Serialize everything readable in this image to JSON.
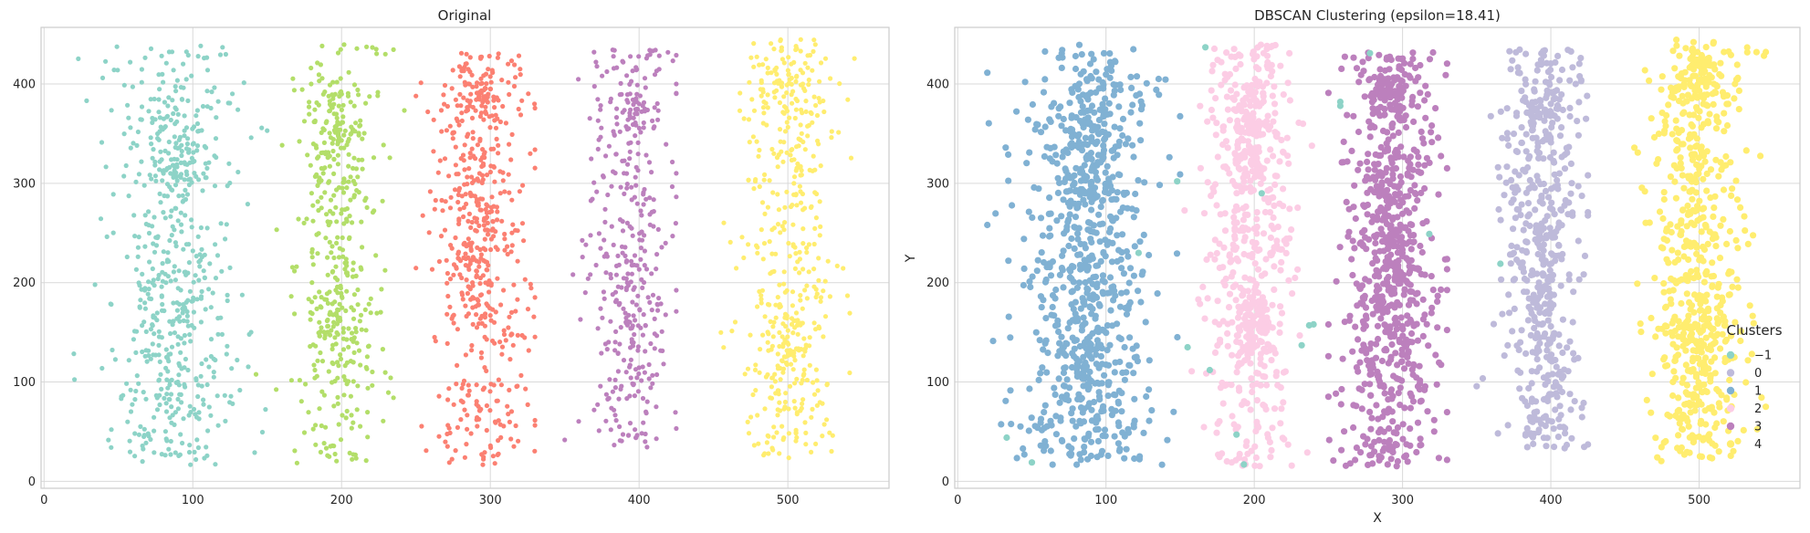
{
  "chart_data": [
    {
      "type": "scatter",
      "title": "Original",
      "xlabel": "",
      "ylabel": "",
      "xlim": [
        -2,
        568
      ],
      "ylim": [
        -7,
        457
      ],
      "xticks": [
        0,
        100,
        200,
        300,
        400,
        500
      ],
      "yticks": [
        0,
        100,
        200,
        300,
        400
      ],
      "grid": true,
      "legend": null,
      "point_radius": 2.6,
      "bands": [
        {
          "color": "#8dd3c7",
          "cx": 88,
          "sx": 24,
          "xmin": 20,
          "xmax": 150,
          "ymin": 15,
          "ymax": 440,
          "n": 430,
          "clusters": [
            {
              "y": 350,
              "sx": 9,
              "sy": 25,
              "n": 50
            },
            {
              "y": 305,
              "sx": 10,
              "sy": 15,
              "n": 35
            },
            {
              "y": 200,
              "sx": 12,
              "sy": 30,
              "n": 60
            },
            {
              "y": 110,
              "sx": 9,
              "sy": 25,
              "n": 45
            }
          ],
          "samples": [
            {
              "x": 88,
              "y": 360
            },
            {
              "x": 85,
              "y": 310
            },
            {
              "x": 82,
              "y": 200
            },
            {
              "x": 90,
              "y": 100
            }
          ]
        },
        {
          "color": "#b3de69",
          "cx": 197,
          "sx": 16,
          "xmin": 140,
          "xmax": 245,
          "ymin": 15,
          "ymax": 440,
          "n": 330,
          "clusters": [
            {
              "y": 360,
              "sx": 7,
              "sy": 20,
              "n": 55
            },
            {
              "y": 310,
              "sx": 7,
              "sy": 20,
              "n": 30
            },
            {
              "y": 160,
              "sx": 9,
              "sy": 20,
              "n": 60
            }
          ],
          "samples": [
            {
              "x": 195,
              "y": 370
            },
            {
              "x": 185,
              "y": 160
            }
          ]
        },
        {
          "color": "#fb8072",
          "cx": 293,
          "sx": 17,
          "xmin": 250,
          "xmax": 330,
          "ymin": 15,
          "ymax": 432,
          "n": 430,
          "clusters": [
            {
              "y": 390,
              "sx": 6,
              "sy": 12,
              "n": 45
            },
            {
              "y": 280,
              "sx": 7,
              "sy": 40,
              "n": 50
            },
            {
              "y": 200,
              "sx": 8,
              "sy": 30,
              "n": 50
            }
          ],
          "samples": [
            {
              "x": 300,
              "y": 395
            },
            {
              "x": 292,
              "y": 280
            }
          ]
        },
        {
          "color": "#bc80bd",
          "cx": 395,
          "sx": 14,
          "xmin": 350,
          "xmax": 425,
          "ymin": 30,
          "ymax": 435,
          "n": 340,
          "clusters": [
            {
              "y": 375,
              "sx": 6,
              "sy": 10,
              "n": 25
            },
            {
              "y": 200,
              "sx": 6,
              "sy": 40,
              "n": 40
            }
          ],
          "samples": [
            {
              "x": 400,
              "y": 380
            },
            {
              "x": 392,
              "y": 200
            }
          ]
        },
        {
          "color": "#ffed6f",
          "cx": 500,
          "sx": 16,
          "xmin": 455,
          "xmax": 545,
          "ymin": 20,
          "ymax": 445,
          "n": 420,
          "clusters": [
            {
              "y": 400,
              "sx": 8,
              "sy": 20,
              "n": 35
            },
            {
              "y": 140,
              "sx": 8,
              "sy": 20,
              "n": 45
            }
          ],
          "samples": [
            {
              "x": 510,
              "y": 400
            },
            {
              "x": 498,
              "y": 140
            }
          ]
        }
      ]
    },
    {
      "type": "scatter",
      "title": "DBSCAN Clustering (epsilon=18.41)",
      "xlabel": "X",
      "ylabel": "Y",
      "xlim": [
        -2,
        568
      ],
      "ylim": [
        -7,
        457
      ],
      "xticks": [
        0,
        100,
        200,
        300,
        400,
        500
      ],
      "yticks": [
        0,
        100,
        200,
        300,
        400
      ],
      "grid": true,
      "legend": {
        "title": "Clusters",
        "placement": "lower-right",
        "entries": [
          {
            "label": "−1",
            "color": "#8dd3c7"
          },
          {
            "label": "0",
            "color": "#bebada"
          },
          {
            "label": "1",
            "color": "#80b1d3"
          },
          {
            "label": "2",
            "color": "#fccde5"
          },
          {
            "label": "3",
            "color": "#bc80bd"
          },
          {
            "label": "4",
            "color": "#ffed6f"
          }
        ]
      },
      "point_radius": 3.6,
      "bands": [
        {
          "color": "#80b1d3",
          "cx": 88,
          "sx": 24,
          "xmin": 20,
          "xmax": 150,
          "ymin": 15,
          "ymax": 440,
          "n": 560,
          "clusters": [
            {
              "y": 350,
              "sx": 9,
              "sy": 25,
              "n": 70
            },
            {
              "y": 305,
              "sx": 10,
              "sy": 15,
              "n": 45
            },
            {
              "y": 200,
              "sx": 12,
              "sy": 30,
              "n": 80
            },
            {
              "y": 110,
              "sx": 9,
              "sy": 25,
              "n": 60
            }
          ],
          "samples": [
            {
              "x": 88,
              "y": 360
            },
            {
              "x": 82,
              "y": 200
            }
          ]
        },
        {
          "color": "#fccde5",
          "cx": 197,
          "sx": 16,
          "xmin": 140,
          "xmax": 245,
          "ymin": 15,
          "ymax": 440,
          "n": 440,
          "clusters": [
            {
              "y": 360,
              "sx": 7,
              "sy": 20,
              "n": 70
            },
            {
              "y": 310,
              "sx": 7,
              "sy": 20,
              "n": 40
            },
            {
              "y": 160,
              "sx": 9,
              "sy": 20,
              "n": 80
            }
          ],
          "samples": [
            {
              "x": 195,
              "y": 370
            },
            {
              "x": 185,
              "y": 160
            }
          ]
        },
        {
          "color": "#bc80bd",
          "cx": 293,
          "sx": 17,
          "xmin": 250,
          "xmax": 330,
          "ymin": 15,
          "ymax": 432,
          "n": 560,
          "clusters": [
            {
              "y": 390,
              "sx": 6,
              "sy": 12,
              "n": 60
            },
            {
              "y": 280,
              "sx": 7,
              "sy": 40,
              "n": 70
            },
            {
              "y": 200,
              "sx": 8,
              "sy": 30,
              "n": 70
            }
          ],
          "samples": [
            {
              "x": 300,
              "y": 395
            },
            {
              "x": 292,
              "y": 280
            }
          ]
        },
        {
          "color": "#bebada",
          "cx": 395,
          "sx": 14,
          "xmin": 350,
          "xmax": 425,
          "ymin": 30,
          "ymax": 435,
          "n": 440,
          "clusters": [
            {
              "y": 375,
              "sx": 6,
              "sy": 10,
              "n": 35
            },
            {
              "y": 200,
              "sx": 6,
              "sy": 40,
              "n": 55
            }
          ],
          "samples": [
            {
              "x": 400,
              "y": 380
            },
            {
              "x": 392,
              "y": 200
            }
          ]
        },
        {
          "color": "#ffed6f",
          "cx": 500,
          "sx": 16,
          "xmin": 455,
          "xmax": 545,
          "ymin": 20,
          "ymax": 445,
          "n": 560,
          "clusters": [
            {
              "y": 400,
              "sx": 8,
              "sy": 20,
              "n": 45
            },
            {
              "y": 140,
              "sx": 8,
              "sy": 20,
              "n": 60
            }
          ],
          "samples": [
            {
              "x": 510,
              "y": 400
            },
            {
              "x": 498,
              "y": 140
            }
          ]
        }
      ],
      "noise_points": {
        "color": "#8dd3c7",
        "x": [
          33,
          50,
          167,
          193,
          188,
          122,
          148,
          155,
          170,
          232,
          237,
          240,
          258,
          258,
          278,
          318,
          366,
          205
        ],
        "y": [
          44,
          19,
          437,
          17,
          47,
          230,
          302,
          135,
          112,
          137,
          157,
          158,
          378,
          382,
          431,
          249,
          219,
          290
        ]
      }
    }
  ]
}
